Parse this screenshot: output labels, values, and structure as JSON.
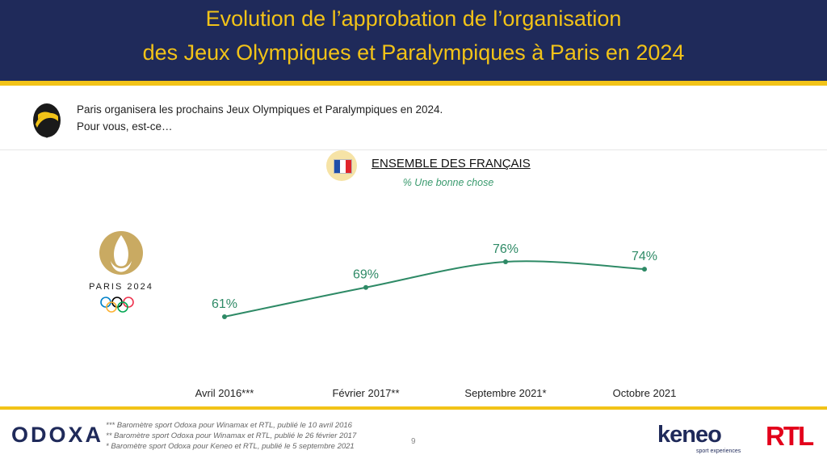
{
  "header": {
    "title_line1": "Evolution de l’approbation de l’organisation",
    "title_line2": "des Jeux Olympiques et Paralympiques à Paris en 2024"
  },
  "question": {
    "line1": "Paris organisera les prochains Jeux Olympiques et Paralympiques en 2024.",
    "line2": "Pour vous, est-ce…"
  },
  "group": {
    "title": "ENSEMBLE DES FRANÇAIS",
    "subtitle": "% Une bonne chose"
  },
  "paris_logo": {
    "text": "PARIS 2024"
  },
  "chart_data": {
    "type": "line",
    "title": "ENSEMBLE DES FRANÇAIS",
    "subtitle": "% Une bonne chose",
    "categories": [
      "Avril 2016***",
      "Février 2017**",
      "Septembre 2021*",
      "Octobre 2021"
    ],
    "series": [
      {
        "name": "% Une bonne chose",
        "values": [
          61,
          69,
          76,
          74
        ],
        "labels": [
          "61%",
          "69%",
          "76%",
          "74%"
        ]
      }
    ],
    "ylim": [
      50,
      90
    ],
    "xlabel": "",
    "ylabel": "",
    "grid": false,
    "line_color": "#2e8a66"
  },
  "footer": {
    "brand": "ODOXA",
    "footnotes": [
      "*** Baromètre sport Odoxa pour Winamax et RTL, publié le 10 avril 2016",
      "** Baromètre sport Odoxa pour Winamax et RTL, publié le 26 février 2017",
      "* Baromètre sport Odoxa pour Keneo et RTL, publié le 5 septembre 2021"
    ],
    "page_number": "9",
    "partner1": "keneo",
    "partner1_tagline": "sport experiences",
    "partner2": "RTL"
  },
  "colors": {
    "navy": "#1f2a5a",
    "gold": "#f2c318",
    "green": "#2e8a66",
    "rtl_red": "#e3001b"
  }
}
